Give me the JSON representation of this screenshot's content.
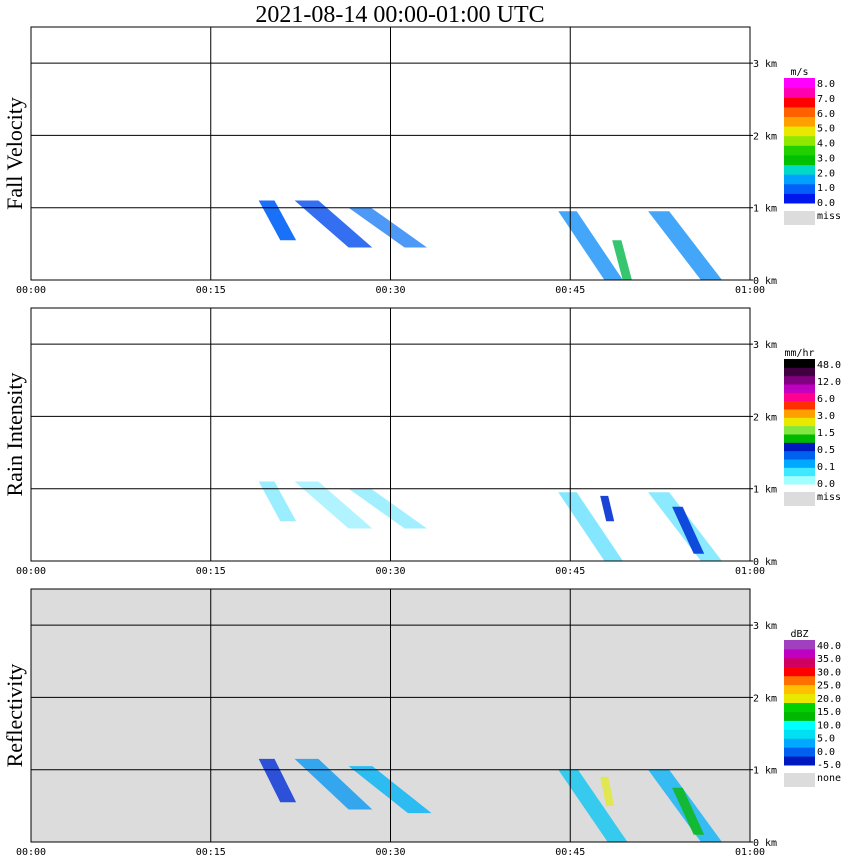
{
  "title": "2021-08-14   00:00-01:00 UTC",
  "chart_data": [
    {
      "type": "heatmap",
      "panel_label": "Fall Velocity",
      "x_ticks": [
        "00:00",
        "00:15",
        "00:30",
        "00:45",
        "01:00"
      ],
      "y_ticks": [
        "0 km",
        "1 km",
        "2 km",
        "3 km"
      ],
      "xlim_minutes": [
        0,
        60
      ],
      "ylim_km": [
        0,
        3.5
      ],
      "background": "#ffffff",
      "colorbar": {
        "unit": "m/s",
        "colors": [
          "#0018ee",
          "#0060f8",
          "#00a0ff",
          "#00d8c8",
          "#00c000",
          "#20d000",
          "#90e800",
          "#e8e800",
          "#ffa000",
          "#ff6000",
          "#ff0000",
          "#ff00b0",
          "#ff00ff"
        ],
        "labels": [
          "8.0",
          "7.0",
          "6.0",
          "5.0",
          "4.0",
          "3.0",
          "2.0",
          "1.0",
          "0.0"
        ],
        "missing_label": "miss",
        "missing_color": "#dcdcdc"
      },
      "echoes": [
        {
          "t": [
            19.0,
            25.0
          ],
          "z": [
            0.55,
            1.1
          ],
          "color": "#0060f8",
          "slant": 0.3
        },
        {
          "t": [
            22.0,
            31.0
          ],
          "z": [
            0.45,
            1.1
          ],
          "color": "#1f5ff0",
          "slant": 0.5
        },
        {
          "t": [
            26.5,
            35.0
          ],
          "z": [
            0.45,
            1.0
          ],
          "color": "#3a8ef6",
          "slant": 0.55
        },
        {
          "t": [
            44.0,
            51.0
          ],
          "z": [
            0.0,
            0.95
          ],
          "color": "#2f9cf8",
          "slant": 0.55
        },
        {
          "t": [
            48.5,
            52.0
          ],
          "z": [
            0.0,
            0.55
          ],
          "color": "#20c060",
          "slant": 0.25
        },
        {
          "t": [
            51.5,
            59.5
          ],
          "z": [
            0.0,
            0.95
          ],
          "color": "#2f9cf8",
          "slant": 0.55
        }
      ]
    },
    {
      "type": "heatmap",
      "panel_label": "Rain Intensity",
      "x_ticks": [
        "00:00",
        "00:15",
        "00:30",
        "00:45",
        "01:00"
      ],
      "y_ticks": [
        "0 km",
        "1 km",
        "2 km",
        "3 km"
      ],
      "xlim_minutes": [
        0,
        60
      ],
      "ylim_km": [
        0,
        3.5
      ],
      "background": "#ffffff",
      "colorbar": {
        "unit": "mm/hr",
        "colors": [
          "#a0ffff",
          "#40e8ff",
          "#00a8ff",
          "#0060f0",
          "#0018c0",
          "#00b800",
          "#80e840",
          "#e8e800",
          "#ffa000",
          "#ff3000",
          "#ff0090",
          "#c000c0",
          "#800080",
          "#400040",
          "#000000"
        ],
        "labels": [
          "48.0",
          "12.0",
          "6.0",
          "3.0",
          "1.5",
          "0.5",
          "0.1",
          "0.0"
        ],
        "missing_label": "miss",
        "missing_color": "#dcdcdc"
      },
      "echoes": [
        {
          "t": [
            19.0,
            25.0
          ],
          "z": [
            0.55,
            1.1
          ],
          "color": "#90ecff",
          "slant": 0.3
        },
        {
          "t": [
            22.0,
            31.0
          ],
          "z": [
            0.45,
            1.1
          ],
          "color": "#a8f2ff",
          "slant": 0.5
        },
        {
          "t": [
            26.5,
            35.0
          ],
          "z": [
            0.45,
            1.0
          ],
          "color": "#98eeff",
          "slant": 0.55
        },
        {
          "t": [
            44.0,
            51.0
          ],
          "z": [
            0.0,
            0.95
          ],
          "color": "#78e4ff",
          "slant": 0.55
        },
        {
          "t": [
            47.5,
            50.0
          ],
          "z": [
            0.55,
            0.9
          ],
          "color": "#0030d0",
          "slant": 0.2
        },
        {
          "t": [
            51.5,
            59.5
          ],
          "z": [
            0.0,
            0.95
          ],
          "color": "#80e8ff",
          "slant": 0.55
        },
        {
          "t": [
            53.5,
            57.5
          ],
          "z": [
            0.1,
            0.75
          ],
          "color": "#0038d8",
          "slant": 0.45
        }
      ]
    },
    {
      "type": "heatmap",
      "panel_label": "Reflectivity",
      "x_ticks": [
        "00:00",
        "00:15",
        "00:30",
        "00:45",
        "01:00"
      ],
      "y_ticks": [
        "0 km",
        "1 km",
        "2 km",
        "3 km"
      ],
      "xlim_minutes": [
        0,
        60
      ],
      "ylim_km": [
        0,
        3.5
      ],
      "background": "#dcdcdc",
      "colorbar": {
        "unit": "dBZ",
        "colors": [
          "#0018c0",
          "#0060f0",
          "#00a8ff",
          "#00e0f0",
          "#00ffff",
          "#00b800",
          "#00d000",
          "#e8e800",
          "#ffc000",
          "#ff7000",
          "#ff0000",
          "#d00060",
          "#c000c0",
          "#a040c0"
        ],
        "labels": [
          "40.0",
          "35.0",
          "30.0",
          "25.0",
          "20.0",
          "15.0",
          "10.0",
          "5.0",
          "0.0",
          "-5.0"
        ],
        "missing_label": "none",
        "missing_color": "#dcdcdc"
      },
      "echoes": [
        {
          "t": [
            19.0,
            25.0
          ],
          "z": [
            0.55,
            1.15
          ],
          "color": "#1a40d8",
          "slant": 0.3
        },
        {
          "t": [
            22.0,
            31.0
          ],
          "z": [
            0.45,
            1.15
          ],
          "color": "#20a0f0",
          "slant": 0.5
        },
        {
          "t": [
            26.5,
            35.5
          ],
          "z": [
            0.4,
            1.05
          ],
          "color": "#18b8f4",
          "slant": 0.55
        },
        {
          "t": [
            44.0,
            51.5
          ],
          "z": [
            0.0,
            1.0
          ],
          "color": "#22c8f0",
          "slant": 0.55
        },
        {
          "t": [
            47.5,
            50.0
          ],
          "z": [
            0.5,
            0.9
          ],
          "color": "#e0e840",
          "slant": 0.2
        },
        {
          "t": [
            51.5,
            59.5
          ],
          "z": [
            0.0,
            1.0
          ],
          "color": "#24b8f4",
          "slant": 0.55
        },
        {
          "t": [
            53.5,
            57.5
          ],
          "z": [
            0.1,
            0.75
          ],
          "color": "#10b820",
          "slant": 0.45
        }
      ]
    }
  ]
}
